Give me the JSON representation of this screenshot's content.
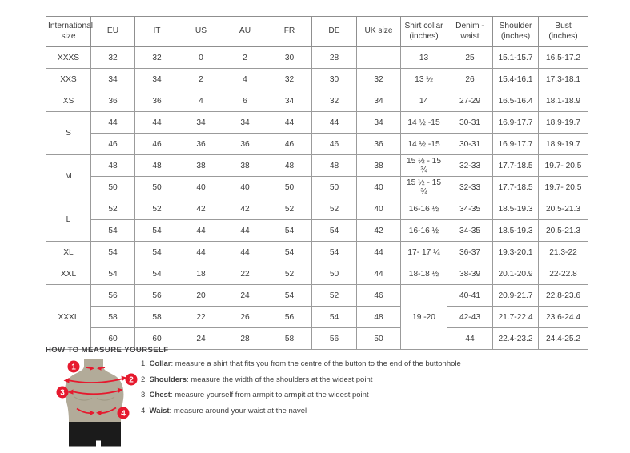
{
  "colors": {
    "accent_red": "#e6192e",
    "mannequin": "#b2ab99",
    "mannequin_shade": "#a29b87",
    "shorts": "#1b1b1b",
    "table_border": "#8f8f8f",
    "text": "#3c3c3c"
  },
  "table": {
    "headers": [
      "International size",
      "EU",
      "IT",
      "US",
      "AU",
      "FR",
      "DE",
      "UK size",
      "Shirt collar (inches)",
      "Denim - waist",
      "Shoulder (inches)",
      "Bust (inches)"
    ],
    "groups": [
      {
        "size": "XXXS",
        "rows": [
          [
            "32",
            "32",
            "0",
            "2",
            "30",
            "28",
            "",
            "13",
            "25",
            "15.1-15.7",
            "16.5-17.2"
          ]
        ]
      },
      {
        "size": "XXS",
        "rows": [
          [
            "34",
            "34",
            "2",
            "4",
            "32",
            "30",
            "32",
            "13 ½",
            "26",
            "15.4-16.1",
            "17.3-18.1"
          ]
        ]
      },
      {
        "size": "XS",
        "rows": [
          [
            "36",
            "36",
            "4",
            "6",
            "34",
            "32",
            "34",
            "14",
            "27-29",
            "16.5-16.4",
            "18.1-18.9"
          ]
        ]
      },
      {
        "size": "S",
        "rows": [
          [
            "44",
            "44",
            "34",
            "34",
            "44",
            "44",
            "34",
            "14 ½ -15",
            "30-31",
            "16.9-17.7",
            "18.9-19.7"
          ],
          [
            "46",
            "46",
            "36",
            "36",
            "46",
            "46",
            "36",
            "14 ½ -15",
            "30-31",
            "16.9-17.7",
            "18.9-19.7"
          ]
        ]
      },
      {
        "size": "M",
        "rows": [
          [
            "48",
            "48",
            "38",
            "38",
            "48",
            "48",
            "38",
            "15 ½ - 15 ¾",
            "32-33",
            "17.7-18.5",
            "19.7- 20.5"
          ],
          [
            "50",
            "50",
            "40",
            "40",
            "50",
            "50",
            "40",
            "15 ½ - 15 ¾",
            "32-33",
            "17.7-18.5",
            "19.7- 20.5"
          ]
        ]
      },
      {
        "size": "L",
        "rows": [
          [
            "52",
            "52",
            "42",
            "42",
            "52",
            "52",
            "40",
            "16-16 ½",
            "34-35",
            "18.5-19.3",
            "20.5-21.3"
          ],
          [
            "54",
            "54",
            "44",
            "44",
            "54",
            "54",
            "42",
            "16-16 ½",
            "34-35",
            "18.5-19.3",
            "20.5-21.3"
          ]
        ]
      },
      {
        "size": "XL",
        "rows": [
          [
            "54",
            "54",
            "44",
            "44",
            "54",
            "54",
            "44",
            "17- 17 ¼",
            "36-37",
            "19.3-20.1",
            "21.3-22"
          ]
        ]
      },
      {
        "size": "XXL",
        "rows": [
          [
            "54",
            "54",
            "18",
            "22",
            "52",
            "50",
            "44",
            "18-18 ½",
            "38-39",
            "20.1-20.9",
            "22-22.8"
          ]
        ]
      },
      {
        "size": "XXXL",
        "collar": "19 -20",
        "rows": [
          [
            "56",
            "56",
            "20",
            "24",
            "54",
            "52",
            "46",
            "40-41",
            "20.9-21.7",
            "22.8-23.6"
          ],
          [
            "58",
            "58",
            "22",
            "26",
            "56",
            "54",
            "48",
            "42-43",
            "21.7-22.4",
            "23.6-24.4"
          ],
          [
            "60",
            "60",
            "24",
            "28",
            "58",
            "56",
            "50",
            "44",
            "22.4-23.2",
            "24.4-25.2"
          ]
        ]
      }
    ]
  },
  "measure": {
    "title": "HOW TO MEASURE YOURSELF",
    "badges": [
      "1",
      "2",
      "3",
      "4"
    ],
    "items": [
      {
        "num": "1.",
        "label": "Collar",
        "text": ": measure a shirt that fits you from the centre of the button to the end of the buttonhole"
      },
      {
        "num": "2.",
        "label": "Shoulders",
        "text": ": measure the width of the shoulders at the widest point"
      },
      {
        "num": "3.",
        "label": "Chest",
        "text": ": measure yourself from armpit to armpit at the widest point"
      },
      {
        "num": "4.",
        "label": "Waist",
        "text": ": measure around your waist at the navel"
      }
    ]
  }
}
